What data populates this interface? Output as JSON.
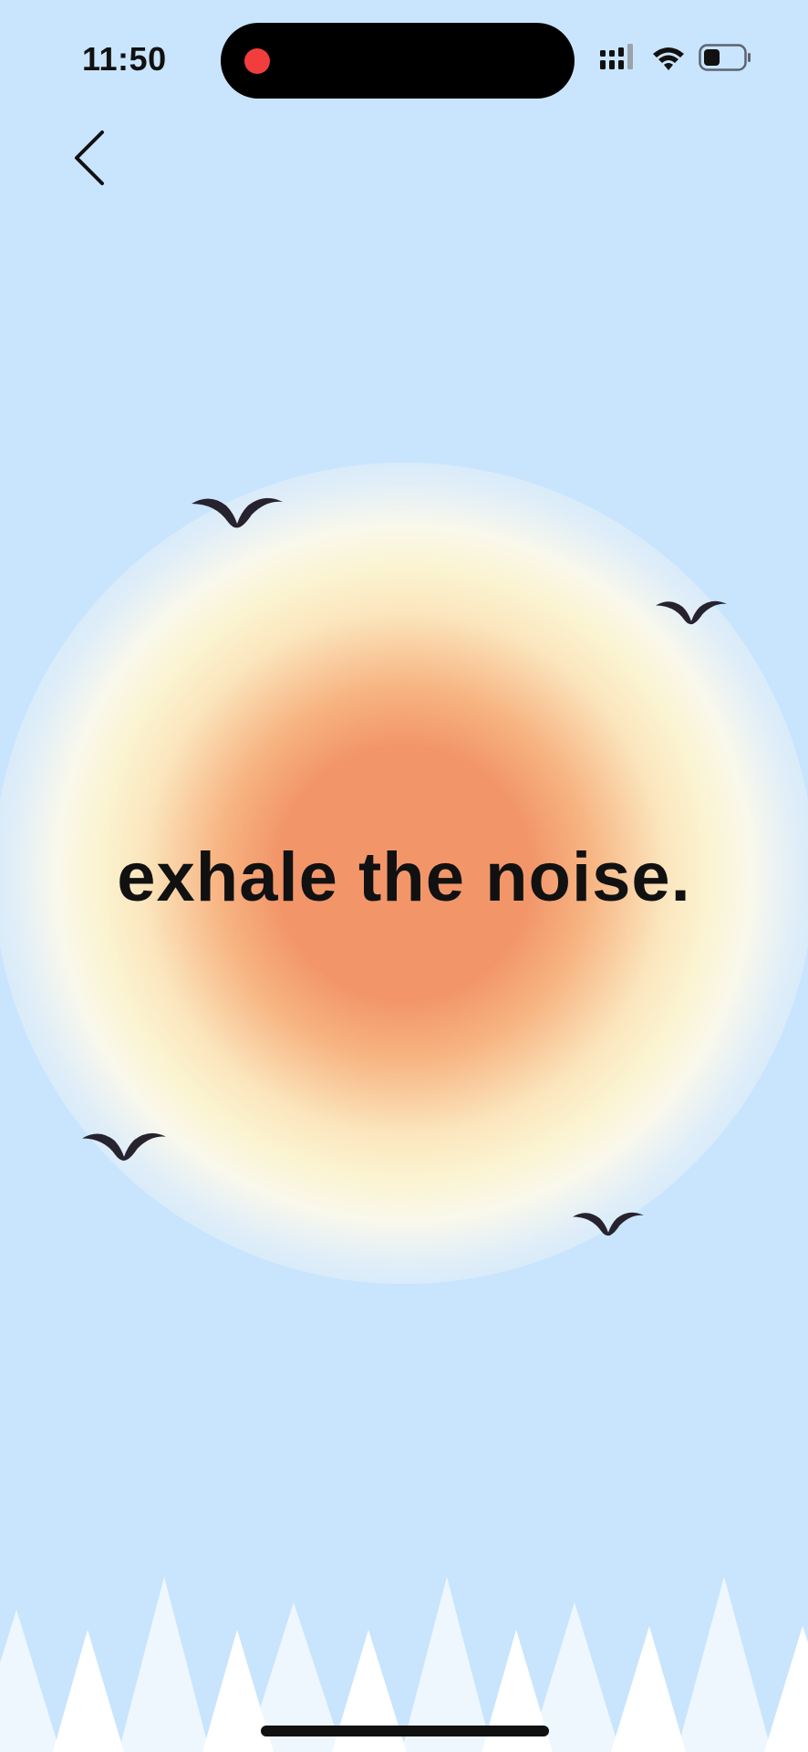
{
  "status_bar": {
    "time": "11:50"
  },
  "colors": {
    "background": "#c9e5fd",
    "sun_core": "#f2966a",
    "sun_halo": "#fbf4d2",
    "recording_dot": "#f23d3d",
    "bird": "#26232e",
    "mountain_light": "#eef7fe",
    "mountain_white": "#ffffff"
  },
  "navigation": {
    "back_icon": "chevron-left-icon"
  },
  "main": {
    "headline": "exhale the noise."
  },
  "icons": {
    "signal": "signal-bars-icon",
    "wifi": "wifi-icon",
    "battery": "battery-icon",
    "bird": "bird-icon"
  }
}
